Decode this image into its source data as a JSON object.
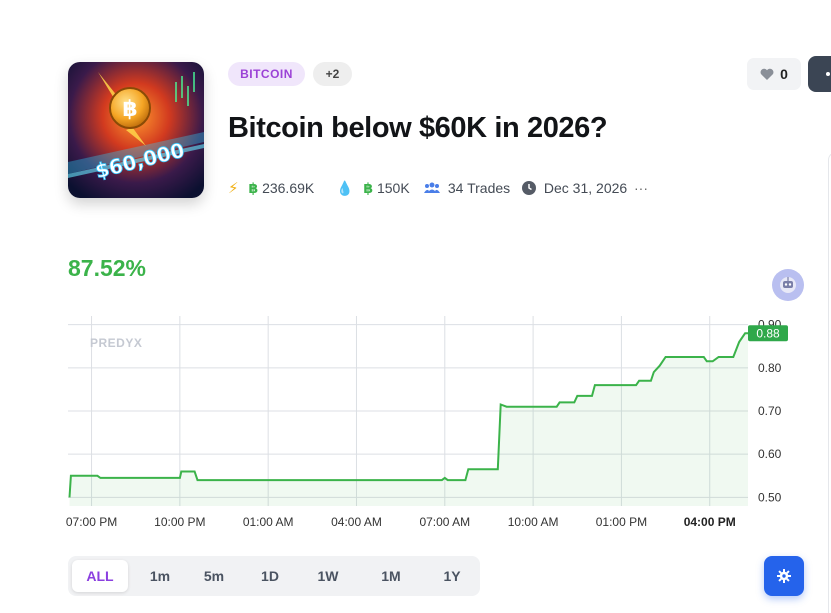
{
  "market": {
    "title": "Bitcoin below $60K in 2026?",
    "tags": [
      "BITCOIN",
      "+2"
    ],
    "thumbnail_text": "$60,000",
    "likes": "0"
  },
  "stats": {
    "volume": "236.69K",
    "liquidity": "150K",
    "trades": "34 Trades",
    "end_date": "Dec 31, 2026",
    "more": "···"
  },
  "colors": {
    "accent_green": "#3bb34a",
    "tag_purple": "#9b42d6",
    "active_range": "#8b3fe0",
    "fab_blue": "#2563eb"
  },
  "probability": "87.52%",
  "chart_data": {
    "type": "line",
    "watermark": "PREDYX",
    "x_ticks": [
      "07:00 PM",
      "10:00 PM",
      "01:00 AM",
      "04:00 AM",
      "07:00 AM",
      "10:00 AM",
      "01:00 PM",
      "04:00 PM"
    ],
    "x_tick_hours": [
      19,
      22,
      25,
      28,
      31,
      34,
      37,
      40
    ],
    "highlight_tick": "04:00 PM",
    "y_ticks": [
      "0.50",
      "0.60",
      "0.70",
      "0.80",
      "0.90"
    ],
    "y_tick_values": [
      0.5,
      0.6,
      0.7,
      0.8,
      0.9
    ],
    "ylim": [
      0.48,
      0.92
    ],
    "xlim": [
      18.2,
      41.3
    ],
    "current_value": 0.88,
    "current_label": "0.88",
    "series": [
      {
        "values": [
          [
            18.25,
            0.5
          ],
          [
            18.3,
            0.55
          ],
          [
            19.2,
            0.55
          ],
          [
            19.3,
            0.545
          ],
          [
            22.0,
            0.545
          ],
          [
            22.05,
            0.56
          ],
          [
            22.5,
            0.56
          ],
          [
            22.6,
            0.54
          ],
          [
            30.9,
            0.54
          ],
          [
            31.0,
            0.545
          ],
          [
            31.1,
            0.54
          ],
          [
            31.7,
            0.54
          ],
          [
            31.8,
            0.565
          ],
          [
            32.8,
            0.565
          ],
          [
            32.9,
            0.715
          ],
          [
            33.1,
            0.71
          ],
          [
            34.8,
            0.71
          ],
          [
            34.9,
            0.72
          ],
          [
            35.4,
            0.72
          ],
          [
            35.5,
            0.735
          ],
          [
            36.0,
            0.735
          ],
          [
            36.1,
            0.76
          ],
          [
            37.5,
            0.76
          ],
          [
            37.6,
            0.77
          ],
          [
            38.0,
            0.77
          ],
          [
            38.1,
            0.79
          ],
          [
            38.3,
            0.805
          ],
          [
            38.5,
            0.825
          ],
          [
            39.8,
            0.825
          ],
          [
            39.9,
            0.815
          ],
          [
            40.1,
            0.815
          ],
          [
            40.3,
            0.825
          ],
          [
            40.8,
            0.825
          ],
          [
            41.0,
            0.86
          ],
          [
            41.2,
            0.88
          ],
          [
            41.3,
            0.88
          ]
        ]
      }
    ]
  },
  "time_range": {
    "options": [
      "ALL",
      "1m",
      "5m",
      "1D",
      "1W",
      "1M",
      "1Y"
    ],
    "selected": "ALL"
  }
}
